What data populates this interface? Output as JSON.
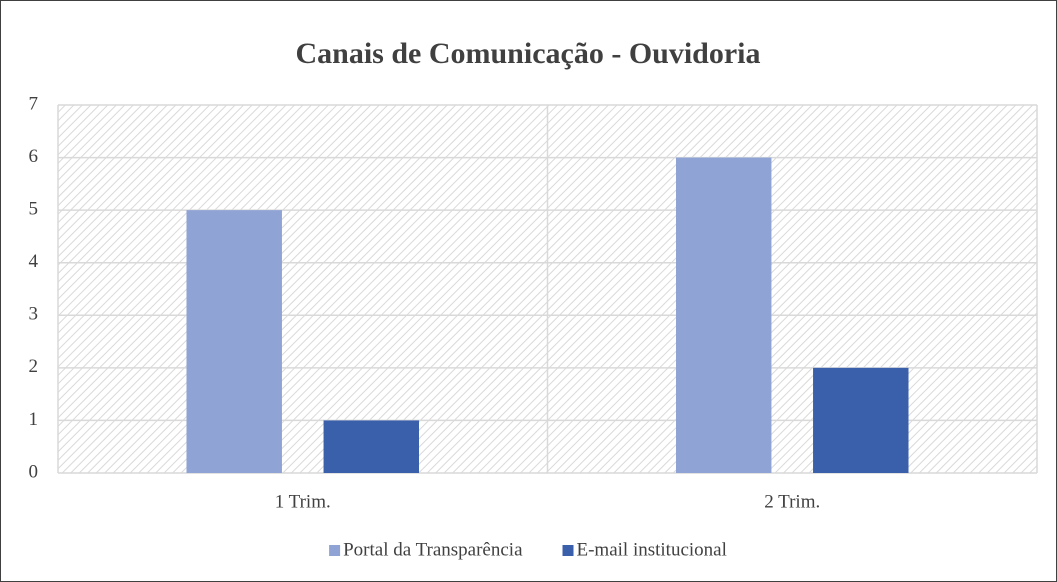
{
  "chart_data": {
    "type": "bar",
    "title": "Canais de Comunicação - Ouvidoria",
    "categories": [
      "1 Trim.",
      "2 Trim."
    ],
    "series": [
      {
        "name": "Portal da Transparência",
        "color": "#8fa3d4",
        "values": [
          5,
          6
        ]
      },
      {
        "name": "E-mail institucional",
        "color": "#3a5fab",
        "values": [
          1,
          2
        ]
      }
    ],
    "ylim": [
      0,
      7
    ],
    "yticks": [
      0,
      1,
      2,
      3,
      4,
      5,
      6,
      7
    ],
    "grid": true,
    "legend": "bottom"
  }
}
